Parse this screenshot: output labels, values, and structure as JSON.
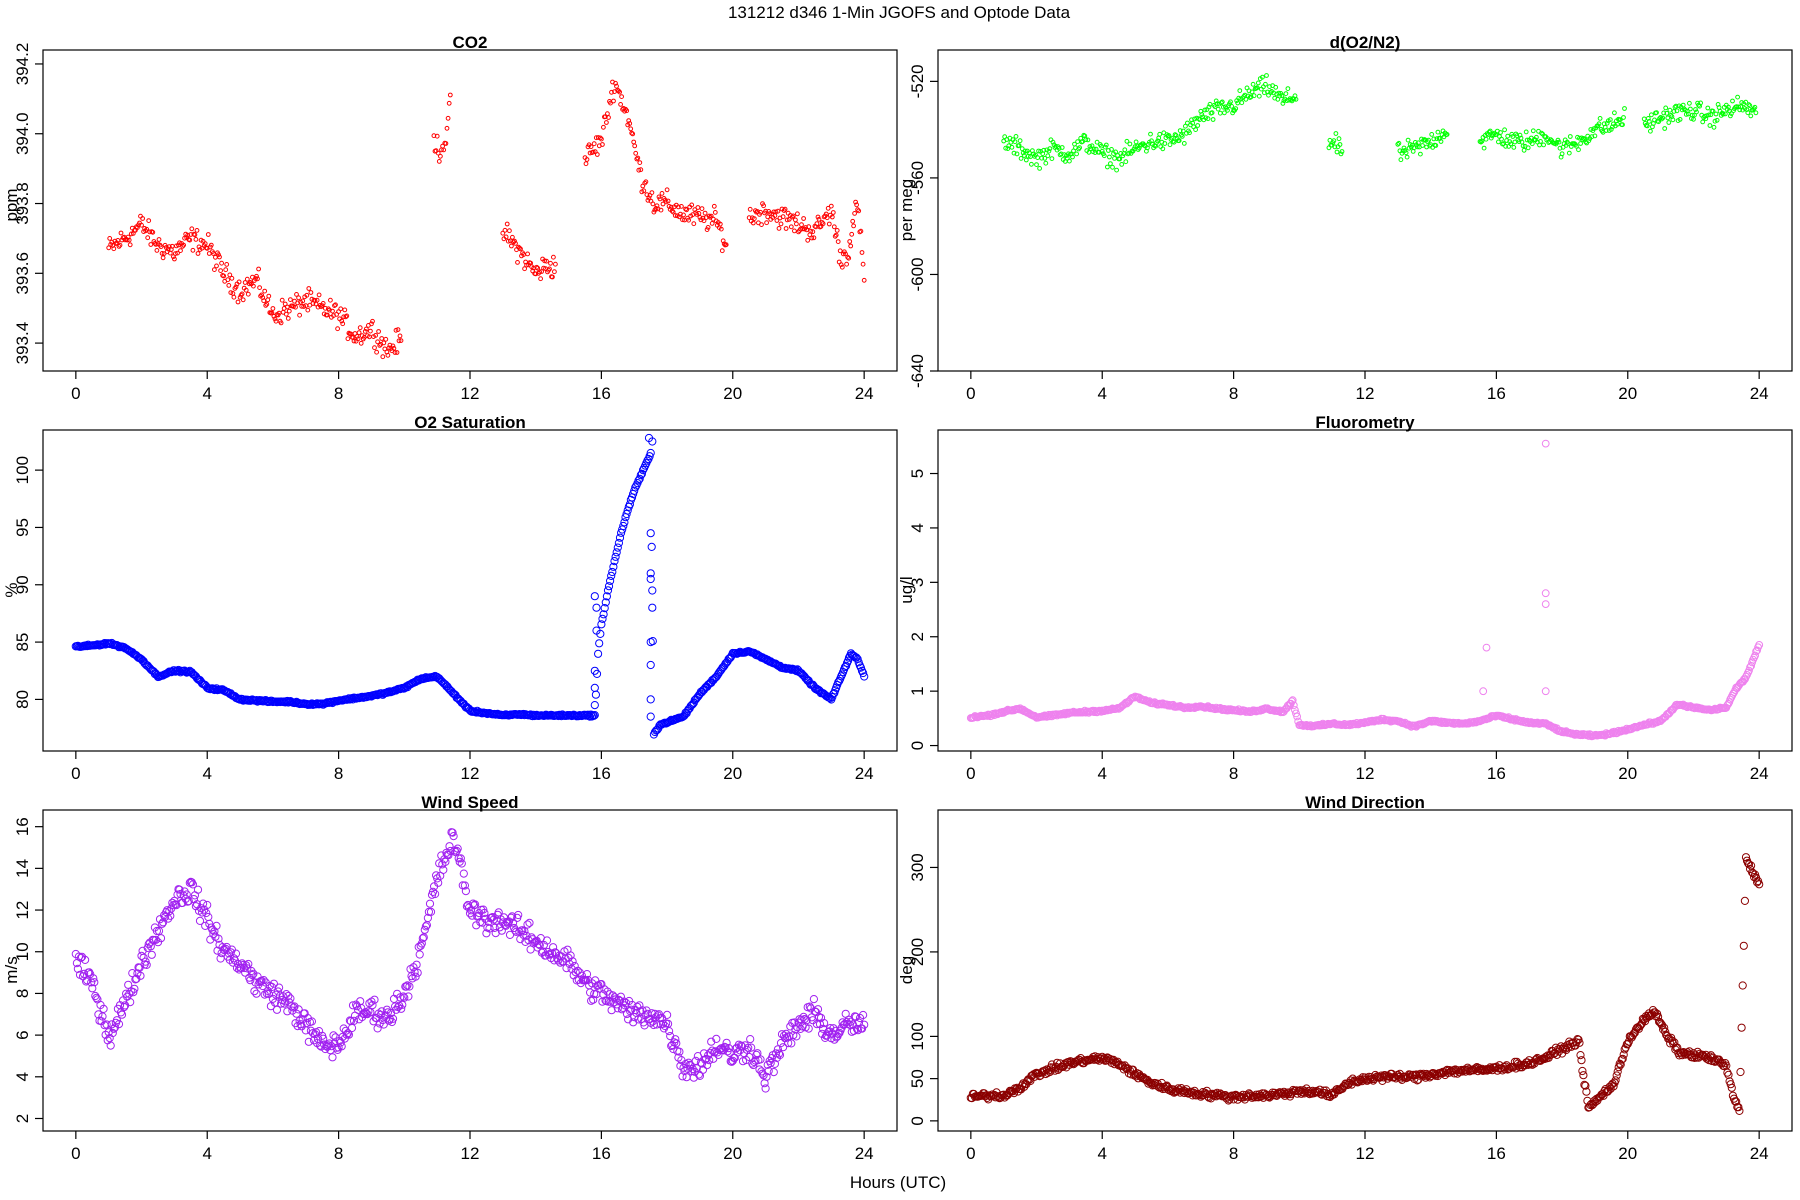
{
  "figure": {
    "title": "131212   d346   1-Min  JGOFS and Optode Data",
    "xlabel": "Hours (UTC)"
  },
  "chart_data": [
    {
      "type": "scatter",
      "title": "CO2",
      "ylabel": "ppm",
      "color": "#ff0000",
      "xlim": [
        -1,
        25
      ],
      "ylim": [
        393.32,
        394.24
      ],
      "xticks": [
        0,
        4,
        8,
        12,
        16,
        20,
        24
      ],
      "yticks": [
        393.4,
        393.6,
        393.8,
        394.0,
        394.2
      ],
      "ytick_labels": [
        "393.4",
        "393.6",
        "393.8",
        "394.0",
        "394.2"
      ],
      "ytick_rotate": true,
      "marker_size": 1.9,
      "jitter": 0.05,
      "x": [
        1.0,
        1.5,
        2.0,
        2.5,
        3.0,
        3.5,
        4.0,
        4.5,
        5.0,
        5.5,
        6.0,
        6.5,
        7.0,
        7.5,
        8.0,
        8.5,
        9.0,
        9.5,
        9.9,
        10.9,
        11.1,
        11.3,
        11.4,
        13.0,
        13.2,
        13.6,
        14.0,
        14.3,
        14.6,
        15.5,
        16.0,
        16.4,
        16.8,
        17.2,
        17.6,
        18.0,
        18.5,
        19.0,
        19.5,
        19.8,
        20.5,
        21.0,
        21.5,
        22.0,
        22.5,
        23.0,
        23.3,
        23.5,
        23.8,
        24.0
      ],
      "values": [
        393.67,
        393.7,
        393.74,
        393.68,
        393.66,
        393.7,
        393.68,
        393.6,
        393.55,
        393.58,
        393.48,
        393.5,
        393.52,
        393.5,
        393.48,
        393.42,
        393.44,
        393.38,
        393.41,
        393.98,
        393.95,
        394.0,
        394.08,
        393.72,
        393.7,
        393.65,
        393.6,
        393.62,
        393.62,
        393.93,
        393.98,
        394.15,
        394.05,
        393.88,
        393.8,
        393.8,
        393.77,
        393.76,
        393.75,
        393.68,
        393.76,
        393.78,
        393.76,
        393.74,
        393.72,
        393.78,
        393.64,
        393.66,
        393.8,
        393.58
      ]
    },
    {
      "type": "scatter",
      "title": "d(O2/N2)",
      "ylabel": "per meg",
      "color": "#00ff00",
      "xlim": [
        -1,
        25
      ],
      "ylim": [
        -640,
        -507
      ],
      "xticks": [
        0,
        4,
        8,
        12,
        16,
        20,
        24
      ],
      "yticks": [
        -640,
        -600,
        -560,
        -520
      ],
      "ytick_labels": [
        "-640",
        "-600",
        "-560",
        "-520"
      ],
      "ytick_rotate": true,
      "marker_size": 1.9,
      "jitter": 6,
      "x": [
        1.0,
        1.5,
        2.0,
        2.5,
        3.0,
        3.5,
        4.0,
        4.5,
        5.0,
        5.5,
        6.0,
        6.5,
        7.0,
        7.5,
        8.0,
        8.5,
        9.0,
        9.5,
        9.9,
        10.9,
        11.3,
        13.0,
        13.5,
        14.0,
        14.5,
        15.5,
        16.0,
        16.5,
        17.0,
        17.5,
        18.0,
        18.5,
        19.0,
        19.5,
        19.9,
        20.5,
        21.0,
        21.5,
        22.0,
        22.5,
        23.0,
        23.5,
        23.9
      ],
      "values": [
        -545,
        -548,
        -552,
        -548,
        -550,
        -545,
        -550,
        -552,
        -548,
        -545,
        -545,
        -542,
        -535,
        -532,
        -530,
        -525,
        -522,
        -528,
        -526,
        -545,
        -548,
        -550,
        -548,
        -545,
        -540,
        -545,
        -542,
        -545,
        -545,
        -542,
        -548,
        -545,
        -540,
        -538,
        -535,
        -538,
        -535,
        -533,
        -532,
        -535,
        -532,
        -530,
        -533
      ]
    },
    {
      "type": "scatter",
      "title": "O2 Saturation",
      "ylabel": "%",
      "color": "#0000ff",
      "xlim": [
        -1,
        25
      ],
      "ylim": [
        75.5,
        103.5
      ],
      "xticks": [
        0,
        4,
        8,
        12,
        16,
        20,
        24
      ],
      "yticks": [
        80,
        85,
        90,
        95,
        100
      ],
      "ytick_labels": [
        "80",
        "85",
        "90",
        "95",
        "100"
      ],
      "ytick_rotate": true,
      "marker_size": 3.6,
      "jitter": 0.12,
      "x": [
        0.0,
        0.5,
        1.0,
        1.5,
        2.0,
        2.5,
        3.0,
        3.5,
        4.0,
        4.5,
        5.0,
        5.5,
        6.0,
        6.5,
        7.0,
        7.5,
        8.0,
        8.5,
        9.0,
        9.5,
        10.0,
        10.5,
        11.0,
        11.5,
        12.0,
        12.5,
        13.0,
        13.5,
        14.0,
        14.5,
        15.0,
        15.5,
        15.8,
        15.9,
        16.0,
        16.2,
        16.4,
        16.6,
        16.8,
        17.0,
        17.2,
        17.4,
        17.5,
        17.6,
        17.8,
        18.0,
        18.5,
        19.0,
        19.5,
        20.0,
        20.5,
        21.0,
        21.5,
        22.0,
        22.5,
        23.0,
        23.3,
        23.6,
        23.8,
        24.0
      ],
      "values": [
        84.6,
        84.7,
        84.9,
        84.5,
        83.5,
        82.0,
        82.5,
        82.4,
        81.0,
        80.8,
        80.0,
        79.9,
        79.8,
        79.8,
        79.6,
        79.6,
        79.9,
        80.1,
        80.3,
        80.6,
        81.0,
        81.8,
        82.0,
        80.5,
        79.0,
        78.8,
        78.6,
        78.7,
        78.6,
        78.6,
        78.6,
        78.6,
        78.6,
        84.0,
        86.5,
        89.5,
        92.0,
        94.5,
        96.5,
        98.2,
        99.5,
        100.8,
        101.5,
        77.0,
        77.8,
        78.0,
        78.5,
        80.5,
        82.0,
        84.0,
        84.2,
        83.5,
        82.8,
        82.5,
        81.0,
        80.0,
        82.0,
        84.0,
        83.5,
        82.0
      ],
      "outliers_x": [
        15.8,
        15.8,
        15.8,
        15.85,
        15.85,
        15.8,
        17.5,
        17.5,
        17.5,
        17.5,
        17.55,
        17.55,
        17.5,
        17.5,
        17.55,
        17.45,
        17.5
      ],
      "outliers_y": [
        79.5,
        81.0,
        82.5,
        86.0,
        88.0,
        89.0,
        78.5,
        80.0,
        83.0,
        85.0,
        88.0,
        89.5,
        91.0,
        94.5,
        102.5,
        102.8,
        90.5
      ]
    },
    {
      "type": "scatter",
      "title": "Fluorometry",
      "ylabel": "ug/l",
      "color": "#ee82ee",
      "xlim": [
        -1,
        25
      ],
      "ylim": [
        -0.1,
        5.8
      ],
      "xticks": [
        0,
        4,
        8,
        12,
        16,
        20,
        24
      ],
      "yticks": [
        0,
        1,
        2,
        3,
        4,
        5
      ],
      "ytick_labels": [
        "0",
        "1",
        "2",
        "3",
        "4",
        "5"
      ],
      "ytick_rotate": true,
      "marker_size": 3.4,
      "jitter": 0.03,
      "x": [
        0.0,
        0.5,
        1.0,
        1.5,
        2.0,
        2.5,
        3.0,
        3.5,
        4.0,
        4.5,
        5.0,
        5.5,
        6.0,
        6.5,
        7.0,
        7.5,
        8.0,
        8.5,
        9.0,
        9.5,
        9.8,
        10.0,
        10.5,
        11.0,
        11.5,
        12.0,
        12.5,
        13.0,
        13.5,
        14.0,
        14.5,
        15.0,
        15.5,
        16.0,
        16.5,
        17.0,
        17.5,
        18.0,
        18.5,
        19.0,
        19.5,
        20.0,
        20.5,
        21.0,
        21.5,
        22.0,
        22.5,
        23.0,
        23.3,
        23.6,
        24.0
      ],
      "values": [
        0.52,
        0.55,
        0.62,
        0.68,
        0.52,
        0.55,
        0.6,
        0.62,
        0.64,
        0.68,
        0.9,
        0.78,
        0.75,
        0.7,
        0.72,
        0.68,
        0.65,
        0.62,
        0.68,
        0.62,
        0.82,
        0.38,
        0.36,
        0.4,
        0.38,
        0.42,
        0.48,
        0.45,
        0.35,
        0.45,
        0.42,
        0.4,
        0.45,
        0.55,
        0.48,
        0.42,
        0.4,
        0.25,
        0.2,
        0.18,
        0.22,
        0.3,
        0.38,
        0.45,
        0.75,
        0.7,
        0.65,
        0.7,
        1.05,
        1.25,
        1.85
      ],
      "outliers_x": [
        15.7,
        15.6,
        17.5,
        17.5,
        17.5,
        17.5
      ],
      "outliers_y": [
        1.8,
        1.0,
        5.55,
        2.8,
        2.6,
        1.0
      ]
    },
    {
      "type": "scatter",
      "title": "Wind Speed",
      "ylabel": "m/s",
      "color": "#a020f0",
      "xlim": [
        -1,
        25
      ],
      "ylim": [
        1.4,
        16.8
      ],
      "xticks": [
        0,
        4,
        8,
        12,
        16,
        20,
        24
      ],
      "yticks": [
        2,
        4,
        6,
        8,
        10,
        12,
        14,
        16
      ],
      "ytick_labels": [
        "2",
        "4",
        "6",
        "8",
        "10",
        "12",
        "14",
        "16"
      ],
      "ytick_rotate": true,
      "marker_size": 3.6,
      "jitter": 0.9,
      "x": [
        0.0,
        0.5,
        1.0,
        1.5,
        2.0,
        2.5,
        3.0,
        3.5,
        4.0,
        4.5,
        5.0,
        5.5,
        6.0,
        6.5,
        7.0,
        7.5,
        8.0,
        8.5,
        9.0,
        9.5,
        10.0,
        10.5,
        11.0,
        11.5,
        12.0,
        12.5,
        13.0,
        13.5,
        14.0,
        14.5,
        15.0,
        15.5,
        16.0,
        16.5,
        17.0,
        17.5,
        18.0,
        18.5,
        19.0,
        19.5,
        20.0,
        20.5,
        21.0,
        21.5,
        22.0,
        22.5,
        23.0,
        23.5,
        24.0
      ],
      "values": [
        9.5,
        8.5,
        6.0,
        7.5,
        9.5,
        11.0,
        12.5,
        13.0,
        11.5,
        10.0,
        9.5,
        8.5,
        8.0,
        7.5,
        6.5,
        5.5,
        5.5,
        7.0,
        7.2,
        6.8,
        8.0,
        10.0,
        13.5,
        15.5,
        12.0,
        11.5,
        11.5,
        11.0,
        10.5,
        10.0,
        9.5,
        8.5,
        8.0,
        7.5,
        7.0,
        7.0,
        6.5,
        4.5,
        4.5,
        5.5,
        5.0,
        5.5,
        4.0,
        5.5,
        6.5,
        7.0,
        6.0,
        6.5,
        6.5
      ]
    },
    {
      "type": "scatter",
      "title": "Wind Direction",
      "ylabel": "deg",
      "color": "#8b0000",
      "xlim": [
        -1,
        25
      ],
      "ylim": [
        -12,
        368
      ],
      "xticks": [
        0,
        4,
        8,
        12,
        16,
        20,
        24
      ],
      "yticks": [
        0,
        50,
        100,
        200,
        300
      ],
      "ytick_labels": [
        "0",
        "50",
        "100",
        "200",
        "300"
      ],
      "ytick_rotate": true,
      "marker_size": 3.6,
      "jitter": 6,
      "x": [
        0.0,
        0.5,
        1.0,
        1.5,
        2.0,
        2.5,
        3.0,
        3.5,
        4.0,
        4.5,
        5.0,
        5.5,
        6.0,
        6.5,
        7.0,
        7.5,
        8.0,
        8.5,
        9.0,
        9.5,
        10.0,
        10.5,
        11.0,
        11.5,
        12.0,
        12.5,
        13.0,
        13.5,
        14.0,
        14.5,
        15.0,
        15.5,
        16.0,
        16.5,
        17.0,
        17.5,
        18.0,
        18.5,
        18.8,
        19.2,
        19.6,
        20.0,
        20.4,
        20.8,
        21.2,
        21.6,
        22.0,
        22.5,
        23.0,
        23.2,
        23.4,
        23.6,
        24.0
      ],
      "values": [
        28,
        30,
        30,
        40,
        55,
        62,
        68,
        72,
        74,
        68,
        55,
        45,
        38,
        35,
        32,
        30,
        28,
        30,
        30,
        32,
        35,
        35,
        30,
        45,
        50,
        52,
        52,
        52,
        55,
        58,
        60,
        60,
        62,
        65,
        68,
        75,
        85,
        95,
        15,
        30,
        45,
        95,
        115,
        130,
        100,
        80,
        78,
        75,
        65,
        30,
        10,
        310,
        280
      ]
    }
  ]
}
